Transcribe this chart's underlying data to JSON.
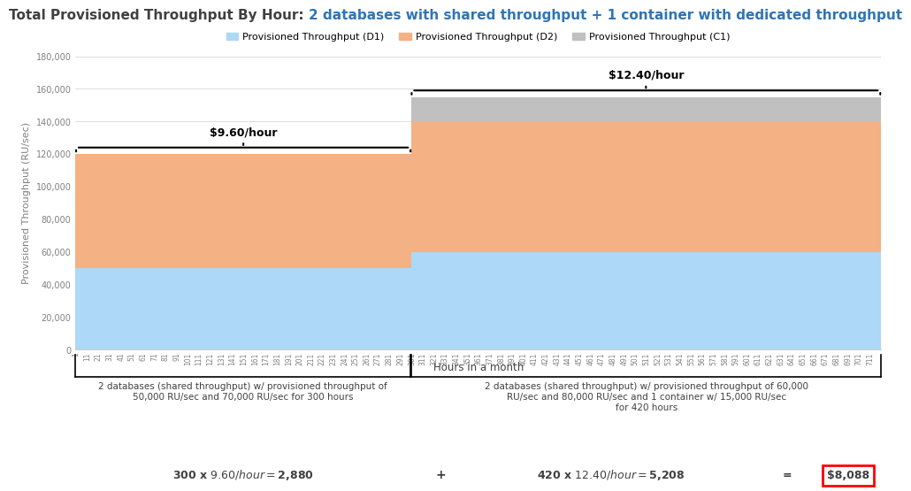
{
  "title_prefix": "Total Provisioned Throughput By Hour: ",
  "title_suffix": "2 databases with shared throughput + 1 container with dedicated throughput",
  "ylabel": "Provisioned Throughput (RU/sec)",
  "xlabel": "Hours in a month",
  "phase1_hours": 300,
  "phase2_hours": 420,
  "total_hours": 720,
  "phase1_d1": 50000,
  "phase1_d2": 70000,
  "phase1_c1": 0,
  "phase2_d1": 60000,
  "phase2_d2": 80000,
  "phase2_c1": 15000,
  "ylim": [
    0,
    180000
  ],
  "yticks": [
    0,
    20000,
    40000,
    60000,
    80000,
    100000,
    120000,
    140000,
    160000,
    180000
  ],
  "color_d1": "#ADD8F7",
  "color_d2": "#F4B183",
  "color_c1": "#C0C0C0",
  "legend_labels": [
    "Provisioned Throughput (D1)",
    "Provisioned Throughput (D2)",
    "Provisioned Throughput (C1)"
  ],
  "price1": "$9.60/hour",
  "price2": "$12.40/hour",
  "annotation1": "2 databases (shared throughput) w/ provisioned throughput of\n50,000 RU/sec and 70,000 RU/sec for 300 hours",
  "annotation2": "2 databases (shared throughput) w/ provisioned throughput of 60,000\nRU/sec and 80,000 RU/sec and 1 container w/ 15,000 RU/sec\nfor 420 hours",
  "formula1": "300 x $9.60/hour = $2,880",
  "plus": "+",
  "formula2": "420 x $12.40/hour = $5,208",
  "equals": "=",
  "total": "$8,088",
  "title_color_prefix": "#404040",
  "title_color_suffix": "#2E75B6",
  "bg_color": "#FFFFFF",
  "tick_label_color": "#808080",
  "grid_color": "#D0D0D0",
  "xtick_step": 10
}
